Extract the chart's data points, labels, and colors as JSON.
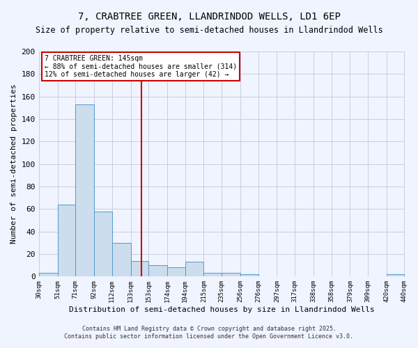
{
  "title1": "7, CRABTREE GREEN, LLANDRINDOD WELLS, LD1 6EP",
  "title2": "Size of property relative to semi-detached houses in Llandrindod Wells",
  "xlabel": "Distribution of semi-detached houses by size in Llandrindod Wells",
  "ylabel": "Number of semi-detached properties",
  "bins": [
    30,
    51,
    71,
    92,
    112,
    133,
    153,
    174,
    194,
    215,
    235,
    256,
    276,
    297,
    317,
    338,
    358,
    379,
    399,
    420,
    440
  ],
  "heights": [
    3,
    64,
    153,
    58,
    30,
    14,
    10,
    8,
    13,
    3,
    3,
    2,
    0,
    0,
    0,
    0,
    0,
    0,
    0,
    2
  ],
  "bar_color": "#ccdded",
  "bar_edge_color": "#5599cc",
  "vline_x": 145,
  "vline_color": "#cc0000",
  "annotation_title": "7 CRABTREE GREEN: 145sqm",
  "annotation_line1": "← 88% of semi-detached houses are smaller (314)",
  "annotation_line2": "12% of semi-detached houses are larger (42) →",
  "annotation_box_color": "#ffffff",
  "annotation_box_edge": "#cc0000",
  "ylim": [
    0,
    200
  ],
  "yticks": [
    0,
    20,
    40,
    60,
    80,
    100,
    120,
    140,
    160,
    180,
    200
  ],
  "footer1": "Contains HM Land Registry data © Crown copyright and database right 2025.",
  "footer2": "Contains public sector information licensed under the Open Government Licence v3.0.",
  "bg_color": "#f0f4ff",
  "grid_color": "#c8cce0"
}
